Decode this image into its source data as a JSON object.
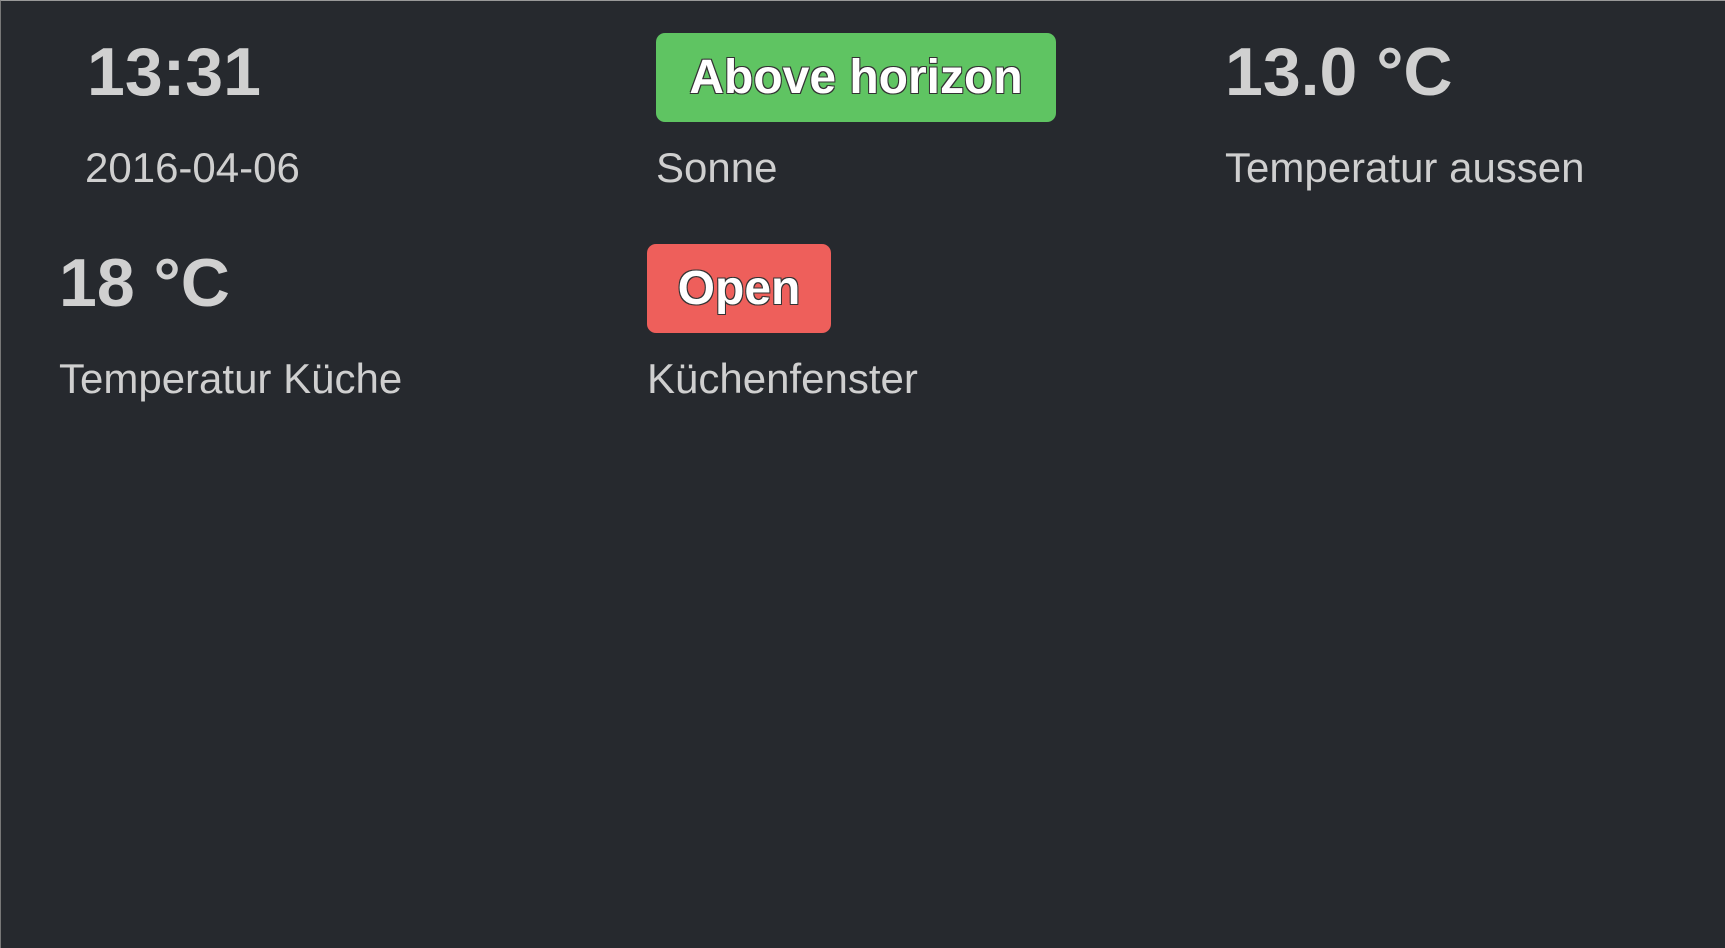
{
  "tiles": [
    {
      "value": "13:31",
      "label": "2016-04-06"
    },
    {
      "state": "Above horizon",
      "label": "Sonne",
      "color": "#5fc462"
    },
    {
      "value": "13.0 °C",
      "label": "Temperatur aussen"
    },
    {
      "value": "18 °C",
      "label": "Temperatur Küche"
    },
    {
      "state": "Open",
      "label": "Küchenfenster",
      "color": "#ee5f5b"
    }
  ]
}
